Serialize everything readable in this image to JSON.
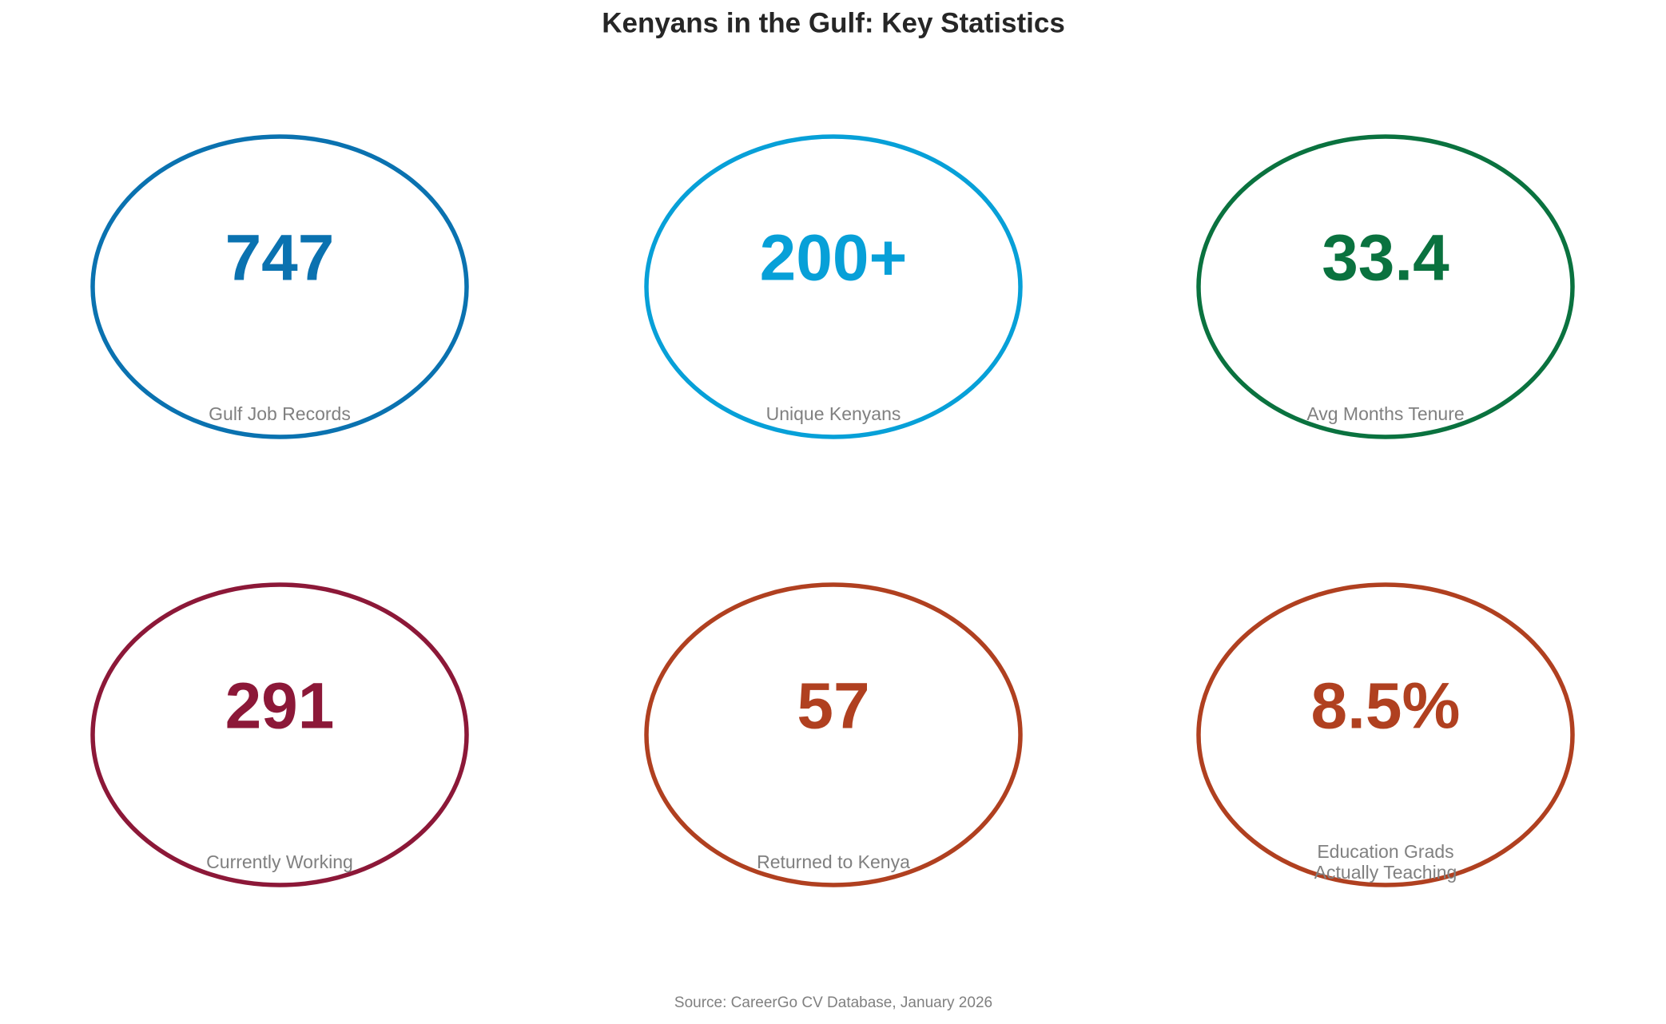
{
  "header": {
    "title": "Kenyans in the Gulf: Key Statistics"
  },
  "stats": [
    {
      "value": "747",
      "label": [
        "Gulf Job Records"
      ],
      "color": "#0a72b0"
    },
    {
      "value": "200+",
      "label": [
        "Unique Kenyans"
      ],
      "color": "#07a0d8"
    },
    {
      "value": "33.4",
      "label": [
        "Avg Months Tenure"
      ],
      "color": "#0a723f"
    },
    {
      "value": "291",
      "label": [
        "Currently Working"
      ],
      "color": "#8c1838"
    },
    {
      "value": "57",
      "label": [
        "Returned to Kenya"
      ],
      "color": "#b04020"
    },
    {
      "value": "8.5%",
      "label": [
        "Education Grads",
        "Actually Teaching"
      ],
      "color": "#b04020"
    }
  ],
  "footer": {
    "source": "Source: CareerGo CV Database, January 2026"
  }
}
